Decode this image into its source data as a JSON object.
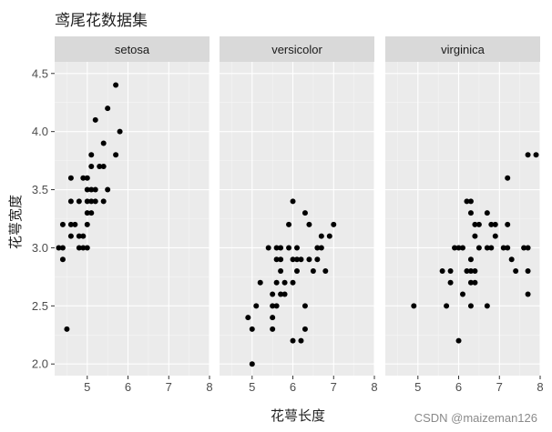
{
  "chart_data": {
    "type": "scatter",
    "title": "鸢尾花数据集",
    "xlabel": "花萼长度",
    "ylabel": "花萼宽度",
    "xlim": [
      4.2,
      8.0
    ],
    "ylim": [
      1.9,
      4.6
    ],
    "x_ticks": [
      5,
      6,
      7,
      8
    ],
    "y_ticks": [
      2.0,
      2.5,
      3.0,
      3.5,
      4.0,
      4.5
    ],
    "grid": true,
    "facets": [
      {
        "name": "setosa",
        "points": [
          [
            4.3,
            3.0
          ],
          [
            4.4,
            2.9
          ],
          [
            4.4,
            3.0
          ],
          [
            4.4,
            3.2
          ],
          [
            4.5,
            2.3
          ],
          [
            4.6,
            3.1
          ],
          [
            4.6,
            3.2
          ],
          [
            4.6,
            3.4
          ],
          [
            4.6,
            3.6
          ],
          [
            4.7,
            3.2
          ],
          [
            4.8,
            3.0
          ],
          [
            4.8,
            3.1
          ],
          [
            4.8,
            3.4
          ],
          [
            4.9,
            3.0
          ],
          [
            4.9,
            3.1
          ],
          [
            4.9,
            3.6
          ],
          [
            5.0,
            3.0
          ],
          [
            5.0,
            3.2
          ],
          [
            5.0,
            3.3
          ],
          [
            5.0,
            3.4
          ],
          [
            5.0,
            3.5
          ],
          [
            5.0,
            3.6
          ],
          [
            5.1,
            3.3
          ],
          [
            5.1,
            3.4
          ],
          [
            5.1,
            3.5
          ],
          [
            5.1,
            3.7
          ],
          [
            5.1,
            3.8
          ],
          [
            5.2,
            3.4
          ],
          [
            5.2,
            3.5
          ],
          [
            5.2,
            4.1
          ],
          [
            5.3,
            3.7
          ],
          [
            5.4,
            3.4
          ],
          [
            5.4,
            3.7
          ],
          [
            5.4,
            3.9
          ],
          [
            5.5,
            3.5
          ],
          [
            5.5,
            4.2
          ],
          [
            5.7,
            3.8
          ],
          [
            5.7,
            4.4
          ],
          [
            5.8,
            4.0
          ]
        ]
      },
      {
        "name": "versicolor",
        "points": [
          [
            4.9,
            2.4
          ],
          [
            5.0,
            2.0
          ],
          [
            5.0,
            2.3
          ],
          [
            5.1,
            2.5
          ],
          [
            5.2,
            2.7
          ],
          [
            5.4,
            3.0
          ],
          [
            5.5,
            2.3
          ],
          [
            5.5,
            2.4
          ],
          [
            5.5,
            2.5
          ],
          [
            5.5,
            2.6
          ],
          [
            5.6,
            2.5
          ],
          [
            5.6,
            2.7
          ],
          [
            5.6,
            2.9
          ],
          [
            5.6,
            3.0
          ],
          [
            5.7,
            2.6
          ],
          [
            5.7,
            2.8
          ],
          [
            5.7,
            2.9
          ],
          [
            5.7,
            3.0
          ],
          [
            5.8,
            2.6
          ],
          [
            5.8,
            2.7
          ],
          [
            5.9,
            3.0
          ],
          [
            5.9,
            3.2
          ],
          [
            6.0,
            2.2
          ],
          [
            6.0,
            2.7
          ],
          [
            6.0,
            2.9
          ],
          [
            6.0,
            3.4
          ],
          [
            6.1,
            2.8
          ],
          [
            6.1,
            2.9
          ],
          [
            6.1,
            3.0
          ],
          [
            6.2,
            2.2
          ],
          [
            6.2,
            2.9
          ],
          [
            6.3,
            2.3
          ],
          [
            6.3,
            2.5
          ],
          [
            6.3,
            3.3
          ],
          [
            6.4,
            2.9
          ],
          [
            6.4,
            3.2
          ],
          [
            6.5,
            2.8
          ],
          [
            6.6,
            2.9
          ],
          [
            6.6,
            3.0
          ],
          [
            6.7,
            3.0
          ],
          [
            6.7,
            3.1
          ],
          [
            6.8,
            2.8
          ],
          [
            6.9,
            3.1
          ],
          [
            7.0,
            3.2
          ]
        ]
      },
      {
        "name": "virginica",
        "points": [
          [
            4.9,
            2.5
          ],
          [
            5.6,
            2.8
          ],
          [
            5.7,
            2.5
          ],
          [
            5.8,
            2.7
          ],
          [
            5.8,
            2.8
          ],
          [
            5.9,
            3.0
          ],
          [
            6.0,
            2.2
          ],
          [
            6.0,
            3.0
          ],
          [
            6.1,
            2.6
          ],
          [
            6.1,
            3.0
          ],
          [
            6.2,
            2.8
          ],
          [
            6.2,
            3.4
          ],
          [
            6.3,
            2.5
          ],
          [
            6.3,
            2.7
          ],
          [
            6.3,
            2.8
          ],
          [
            6.3,
            2.9
          ],
          [
            6.3,
            3.3
          ],
          [
            6.3,
            3.4
          ],
          [
            6.4,
            2.7
          ],
          [
            6.4,
            2.8
          ],
          [
            6.4,
            3.1
          ],
          [
            6.4,
            3.2
          ],
          [
            6.5,
            3.0
          ],
          [
            6.5,
            3.2
          ],
          [
            6.7,
            2.5
          ],
          [
            6.7,
            3.0
          ],
          [
            6.7,
            3.3
          ],
          [
            6.8,
            3.0
          ],
          [
            6.8,
            3.2
          ],
          [
            6.9,
            3.1
          ],
          [
            6.9,
            3.2
          ],
          [
            7.1,
            3.0
          ],
          [
            7.2,
            3.0
          ],
          [
            7.2,
            3.2
          ],
          [
            7.2,
            3.6
          ],
          [
            7.3,
            2.9
          ],
          [
            7.4,
            2.8
          ],
          [
            7.6,
            3.0
          ],
          [
            7.7,
            2.6
          ],
          [
            7.7,
            2.8
          ],
          [
            7.7,
            3.0
          ],
          [
            7.7,
            3.8
          ],
          [
            7.9,
            3.8
          ]
        ]
      }
    ]
  },
  "watermark": "CSDN @maizeman126"
}
